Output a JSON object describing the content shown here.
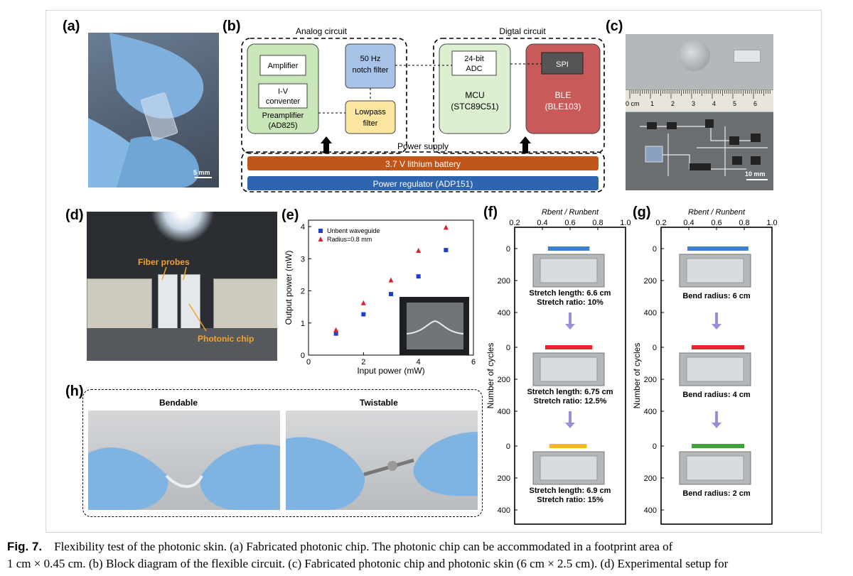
{
  "panels": {
    "a": "(a)",
    "b": "(b)",
    "c": "(c)",
    "d": "(d)",
    "e": "(e)",
    "f": "(f)",
    "g": "(g)",
    "h": "(h)"
  },
  "panel_a": {
    "scalebar": "5 mm"
  },
  "panel_b": {
    "analog_title": "Analog circuit",
    "digital_title": "Digtal circuit",
    "amplifier": "Amplifier",
    "iv_line1": "I-V",
    "iv_line2": "conventer",
    "preamp_line1": "Preamplifier",
    "preamp_line2": "(AD825)",
    "notch_line1": "50 Hz",
    "notch_line2": "notch filter",
    "lowpass_line1": "Lowpass",
    "lowpass_line2": "filter",
    "adc_line1": "24-bit",
    "adc_line2": "ADC",
    "mcu_line1": "MCU",
    "mcu_line2": "(STC89C51)",
    "spi": "SPI",
    "ble_line1": "BLE",
    "ble_line2": "(BLE103)",
    "power_supply": "Power supply",
    "battery": "3.7 V lithium battery",
    "regulator": "Power regulator (ADP151)"
  },
  "panel_c": {
    "ruler_ticks": [
      "0 cm",
      "1",
      "2",
      "3",
      "4",
      "5",
      "6"
    ],
    "scalebar": "10 mm"
  },
  "panel_d": {
    "fiber_label": "Fiber probes",
    "chip_label": "Photonic chip"
  },
  "panel_h": {
    "left_title": "Bendable",
    "right_title": "Twistable"
  },
  "panel_f": {
    "axis_title_top": "Rbent / Runbent",
    "top_ticks": [
      "0.2",
      "0.4",
      "0.6",
      "0.8",
      "1.0"
    ],
    "left_title": "Number of cycles",
    "captions": [
      [
        "Stretch length: 6.6 cm",
        "Stretch ratio: 10%"
      ],
      [
        "Stretch length: 6.75 cm",
        "Stretch ratio: 12.5%"
      ],
      [
        "Stretch length: 6.9 cm",
        "Stretch ratio: 15%"
      ]
    ]
  },
  "panel_g": {
    "axis_title_top": "Rbent / Runbent",
    "top_ticks": [
      "0.2",
      "0.4",
      "0.6",
      "0.8",
      "1.0"
    ],
    "left_title": "Number of cycles",
    "captions": [
      "Bend radius: 6 cm",
      "Bend radius: 4 cm",
      "Bend radius: 2 cm"
    ]
  },
  "chart_data": [
    {
      "type": "scatter",
      "panel": "e",
      "xlabel": "Input power (mW)",
      "ylabel": "Output power (mW)",
      "xlim": [
        0,
        6
      ],
      "ylim": [
        0,
        4.2
      ],
      "xticks": [
        "0",
        "2",
        "4",
        "6"
      ],
      "yticks": [
        "0",
        "1",
        "2",
        "3",
        "4"
      ],
      "legend_position": "top-left",
      "series": [
        {
          "name": "Unbent waveguide",
          "color": "#1f3ecf",
          "marker": "square",
          "x": [
            1,
            2,
            3,
            4,
            5
          ],
          "y": [
            0.67,
            1.27,
            1.9,
            2.45,
            3.27
          ]
        },
        {
          "name": "Radius=0.8 mm",
          "color": "#e0202a",
          "marker": "triangle",
          "x": [
            1,
            2,
            3,
            4,
            5
          ],
          "y": [
            0.78,
            1.62,
            2.33,
            3.25,
            3.97
          ]
        }
      ]
    },
    {
      "type": "scatter",
      "panel": "f",
      "xlabel": "Rbent / Runbent",
      "ylabel": "Number of cycles",
      "xlim": [
        0.2,
        1.0
      ],
      "ylim": [
        0,
        400
      ],
      "series": [
        {
          "name": "Stretch ratio: 10%",
          "color": "#3b7fd4",
          "x_range": [
            0.44,
            0.74
          ],
          "cycles": [
            0,
            20
          ]
        },
        {
          "name": "Stretch ratio: 12.5%",
          "color": "#e8242b",
          "x_range": [
            0.42,
            0.76
          ],
          "cycles": [
            0,
            20
          ]
        },
        {
          "name": "Stretch ratio: 15%",
          "color": "#f2b824",
          "x_range": [
            0.45,
            0.72
          ],
          "cycles": [
            0,
            20
          ]
        }
      ]
    },
    {
      "type": "scatter",
      "panel": "g",
      "xlabel": "Rbent / Runbent",
      "ylabel": "Number of cycles",
      "xlim": [
        0.2,
        1.0
      ],
      "ylim": [
        0,
        400
      ],
      "series": [
        {
          "name": "Bend radius: 6 cm",
          "color": "#3b7fd4",
          "x_range": [
            0.39,
            0.83
          ],
          "cycles": [
            0,
            20
          ]
        },
        {
          "name": "Bend radius: 4 cm",
          "color": "#e8242b",
          "x_range": [
            0.42,
            0.8
          ],
          "cycles": [
            0,
            20
          ]
        },
        {
          "name": "Bend radius: 2 cm",
          "color": "#3fa33a",
          "x_range": [
            0.42,
            0.8
          ],
          "cycles": [
            0,
            20
          ]
        }
      ]
    }
  ],
  "caption": {
    "fig_label": "Fig. 7.",
    "line1": "Flexibility test of the photonic skin. (a) Fabricated photonic chip. The photonic chip can be accommodated in a footprint area of",
    "line2": "1 cm × 0.45 cm. (b) Block diagram of the flexible circuit. (c) Fabricated photonic chip and photonic skin (6 cm × 2.5 cm). (d) Experimental setup for"
  }
}
